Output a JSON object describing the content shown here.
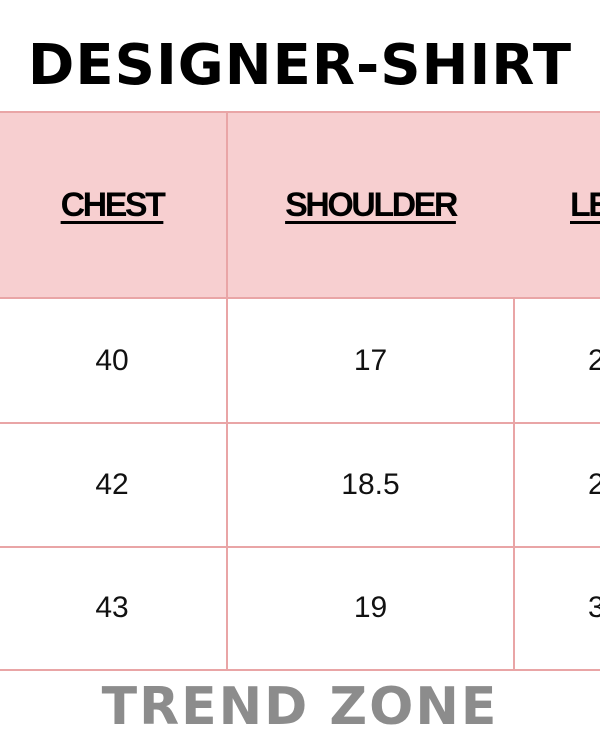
{
  "header": {
    "title": "DESIGNER-SHIRT"
  },
  "table": {
    "columns": [
      "CHEST",
      "SHOULDER",
      "LE"
    ],
    "rows": [
      [
        "40",
        "17",
        "2"
      ],
      [
        "42",
        "18.5",
        "2"
      ],
      [
        "43",
        "19",
        "3"
      ]
    ]
  },
  "footer": {
    "brand": "TREND ZONE"
  }
}
